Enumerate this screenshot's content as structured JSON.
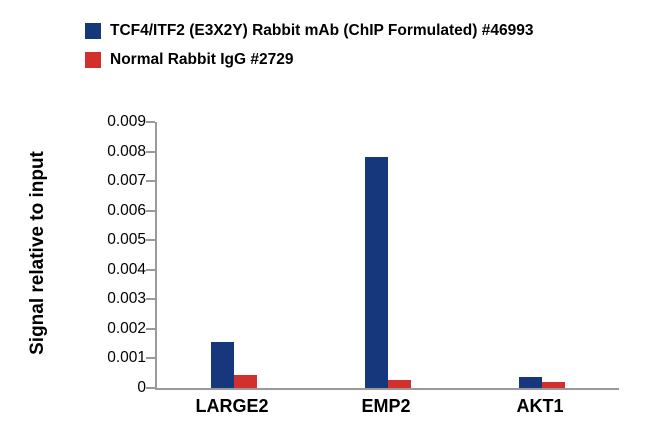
{
  "legend": {
    "items": [
      {
        "label": "TCF4/ITF2 (E3X2Y) Rabbit mAb (ChIP Formulated) #46993",
        "color": "#16377c",
        "icon": "blue-square-swatch"
      },
      {
        "label": "Normal Rabbit IgG #2729",
        "color": "#d2302c",
        "icon": "red-square-swatch"
      }
    ]
  },
  "chart_data": {
    "type": "bar",
    "title": "",
    "xlabel": "",
    "ylabel": "Signal relative to input",
    "categories": [
      "LARGE2",
      "EMP2",
      "AKT1"
    ],
    "series": [
      {
        "name": "TCF4/ITF2 (E3X2Y) Rabbit mAb (ChIP Formulated) #46993",
        "color": "#16377c",
        "values": [
          0.00155,
          0.0078,
          0.00038
        ]
      },
      {
        "name": "Normal Rabbit IgG #2729",
        "color": "#d2302c",
        "values": [
          0.00045,
          0.00028,
          0.0002
        ]
      }
    ],
    "ylim": [
      0,
      0.009
    ],
    "ytick_labels": [
      "0",
      "0.001",
      "0.002",
      "0.003",
      "0.004",
      "0.005",
      "0.006",
      "0.007",
      "0.008",
      "0.009"
    ],
    "grid": false,
    "legend_position": "top-left"
  }
}
